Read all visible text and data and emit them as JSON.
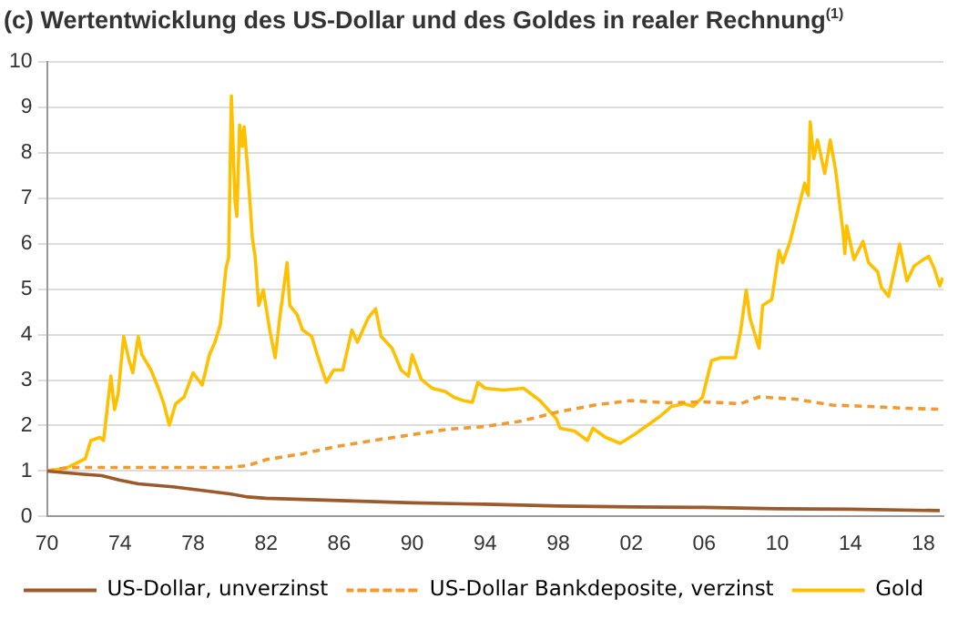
{
  "chart_data": {
    "type": "line",
    "title": "(c) Wertentwicklung des US-Dollar und des Goldes in realer Rechnung$^{(1)}$",
    "xlim": [
      1970,
      2019.1
    ],
    "xticks": [
      {
        "value": 1970,
        "label": "70"
      },
      {
        "value": 1974,
        "label": "74"
      },
      {
        "value": 1978,
        "label": "78"
      },
      {
        "value": 1982,
        "label": "82"
      },
      {
        "value": 1986,
        "label": "86"
      },
      {
        "value": 1990,
        "label": "90"
      },
      {
        "value": 1994,
        "label": "94"
      },
      {
        "value": 1998,
        "label": "98"
      },
      {
        "value": 2002,
        "label": "02"
      },
      {
        "value": 2006,
        "label": "06"
      },
      {
        "value": 2010,
        "label": "10"
      },
      {
        "value": 2014,
        "label": "14"
      },
      {
        "value": 2018,
        "label": "18"
      }
    ],
    "ylim": [
      0,
      10
    ],
    "yticks": [
      0,
      1,
      2,
      3,
      4,
      5,
      6,
      7,
      8,
      9,
      10
    ],
    "grid": "y",
    "legend": "bottom",
    "marker": "none",
    "series": [
      {
        "name": "US-Dollar, unverzinst",
        "color": "#9c5a2c",
        "line_style": "solid",
        "x": [
          1970,
          1972,
          1973,
          1974,
          1975,
          1977,
          1978,
          1980,
          1981,
          1982,
          1986,
          1990,
          1994,
          1998,
          2002,
          2006,
          2010,
          2014,
          2018.9
        ],
        "values": [
          1.0,
          0.93,
          0.9,
          0.8,
          0.72,
          0.65,
          0.6,
          0.5,
          0.43,
          0.4,
          0.35,
          0.3,
          0.27,
          0.23,
          0.21,
          0.2,
          0.17,
          0.16,
          0.13
        ]
      },
      {
        "name": "US-Dollar Bankdeposite, verzinst",
        "color": "#f29a2e",
        "line_style": "dashed",
        "x": [
          1970,
          1971,
          1972,
          1976,
          1980,
          1981,
          1982,
          1984,
          1986,
          1988,
          1990,
          1992,
          1994,
          1996,
          1998,
          2000,
          2002,
          2004,
          2006,
          2008,
          2009,
          2011,
          2013,
          2015,
          2017,
          2018.9
        ],
        "values": [
          1.0,
          1.07,
          1.08,
          1.08,
          1.08,
          1.12,
          1.25,
          1.38,
          1.55,
          1.68,
          1.8,
          1.92,
          1.98,
          2.1,
          2.3,
          2.45,
          2.55,
          2.5,
          2.52,
          2.48,
          2.63,
          2.58,
          2.45,
          2.42,
          2.38,
          2.36
        ]
      },
      {
        "name": "Gold",
        "color": "#ffc000",
        "line_style": "solid",
        "x": [
          1970,
          1971.1,
          1972.1,
          1972.4,
          1972.9,
          1973.1,
          1973.5,
          1973.7,
          1973.9,
          1974.2,
          1974.5,
          1974.7,
          1975,
          1975.2,
          1975.7,
          1976.1,
          1976.4,
          1976.7,
          1977.05,
          1977.5,
          1978,
          1978.5,
          1978.9,
          1979.2,
          1979.5,
          1979.8,
          1979.95,
          1980.1,
          1980.3,
          1980.4,
          1980.55,
          1980.7,
          1980.8,
          1981,
          1981.25,
          1981.4,
          1981.6,
          1981.85,
          1982.2,
          1982.5,
          1982.75,
          1983.15,
          1983.3,
          1983.7,
          1984,
          1984.5,
          1984.8,
          1985.3,
          1985.7,
          1986.2,
          1986.7,
          1987,
          1987.6,
          1988,
          1988.3,
          1988.9,
          1989.4,
          1989.8,
          1990,
          1990.5,
          1991.1,
          1991.8,
          1992.3,
          1992.8,
          1993.3,
          1993.6,
          1994,
          1995,
          1996.1,
          1997,
          1997.9,
          1998.1,
          1998.9,
          1999.6,
          1999.9,
          2000.6,
          2001.4,
          2002.2,
          2002.9,
          2003.6,
          2004.2,
          2004.9,
          2005.4,
          2005.9,
          2006.4,
          2006.9,
          2007.7,
          2008,
          2008.3,
          2008.5,
          2009,
          2009.2,
          2009.7,
          2010.1,
          2010.3,
          2010.7,
          2011,
          2011.5,
          2011.7,
          2011.8,
          2012,
          2012.2,
          2012.6,
          2012.9,
          2013.2,
          2013.6,
          2013.7,
          2013.8,
          2014.2,
          2014.7,
          2015,
          2015.5,
          2015.7,
          2016.1,
          2016.5,
          2016.7,
          2017.1,
          2017.5,
          2018,
          2018.3,
          2018.6,
          2018.9,
          2019.05
        ],
        "values": [
          1.0,
          1.07,
          1.27,
          1.67,
          1.74,
          1.67,
          3.09,
          2.35,
          2.7,
          3.96,
          3.43,
          3.16,
          3.96,
          3.56,
          3.22,
          2.82,
          2.48,
          2.01,
          2.48,
          2.62,
          3.16,
          2.89,
          3.56,
          3.83,
          4.23,
          5.45,
          5.7,
          9.25,
          6.93,
          6.6,
          8.61,
          8.14,
          8.57,
          7.6,
          6.12,
          5.72,
          4.64,
          4.98,
          4.1,
          3.49,
          4.37,
          5.58,
          4.64,
          4.44,
          4.1,
          3.96,
          3.56,
          2.95,
          3.22,
          3.22,
          4.1,
          3.83,
          4.37,
          4.57,
          3.96,
          3.7,
          3.22,
          3.09,
          3.56,
          3.02,
          2.82,
          2.75,
          2.62,
          2.55,
          2.51,
          2.95,
          2.82,
          2.78,
          2.82,
          2.55,
          2.15,
          1.94,
          1.88,
          1.67,
          1.94,
          1.74,
          1.61,
          1.81,
          2.01,
          2.21,
          2.42,
          2.48,
          2.42,
          2.62,
          3.43,
          3.49,
          3.49,
          4.1,
          4.98,
          4.37,
          3.7,
          4.64,
          4.77,
          5.85,
          5.58,
          6.05,
          6.53,
          7.33,
          7.06,
          8.68,
          7.87,
          8.28,
          7.54,
          8.28,
          7.6,
          6.26,
          5.78,
          6.39,
          5.65,
          6.05,
          5.58,
          5.38,
          5.04,
          4.84,
          5.58,
          5.99,
          5.18,
          5.51,
          5.65,
          5.72,
          5.45,
          5.07,
          5.25
        ]
      }
    ]
  }
}
